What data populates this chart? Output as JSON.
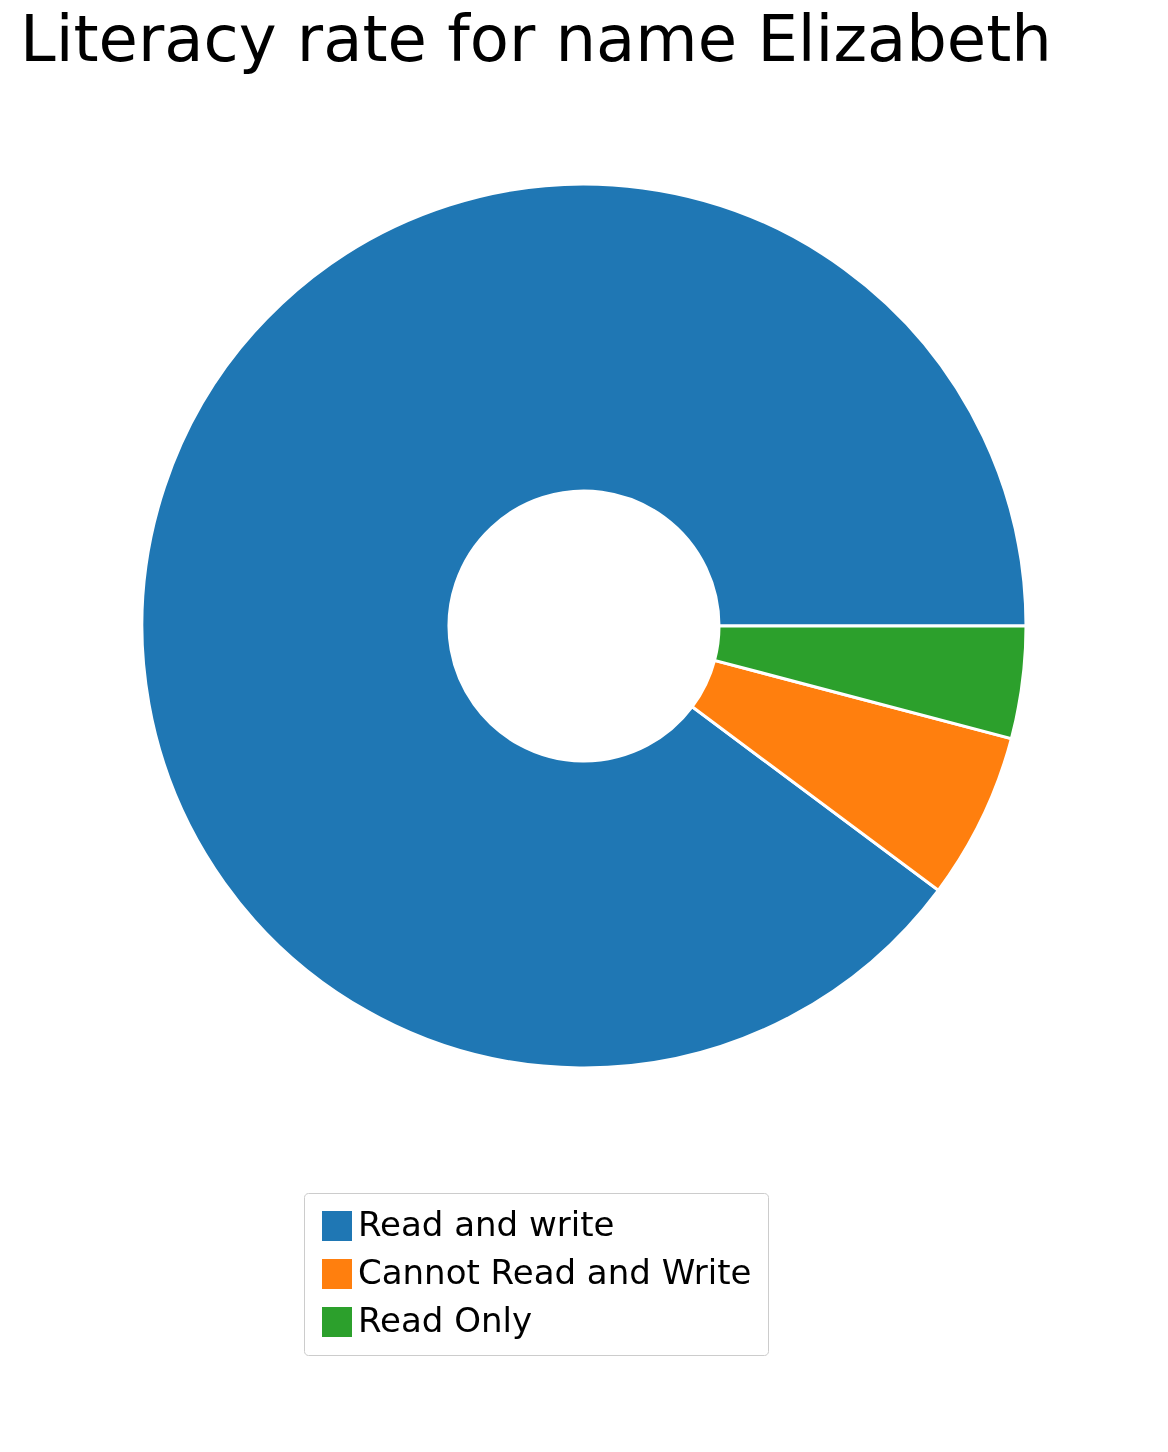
{
  "chart_data": {
    "type": "donut",
    "title": "Literacy rate for name Elizabeth",
    "categories": [
      "Read and write",
      "Cannot Read and Write",
      "Read Only"
    ],
    "values": [
      89.8,
      6.1,
      4.1
    ],
    "colors": [
      "#1f77b4",
      "#ff7f0e",
      "#2ca02c"
    ],
    "legend": "bottom"
  }
}
